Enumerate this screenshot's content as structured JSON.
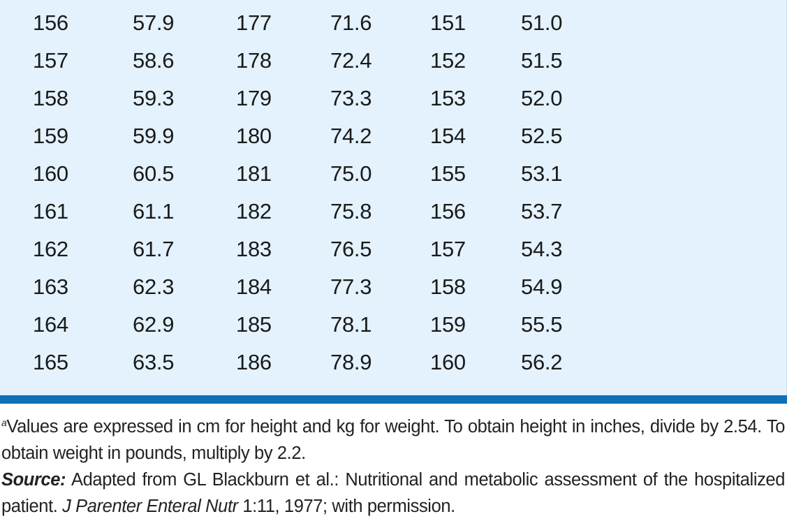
{
  "table": {
    "rows": [
      [
        "156",
        "57.9",
        "177",
        "71.6",
        "151",
        "51.0"
      ],
      [
        "157",
        "58.6",
        "178",
        "72.4",
        "152",
        "51.5"
      ],
      [
        "158",
        "59.3",
        "179",
        "73.3",
        "153",
        "52.0"
      ],
      [
        "159",
        "59.9",
        "180",
        "74.2",
        "154",
        "52.5"
      ],
      [
        "160",
        "60.5",
        "181",
        "75.0",
        "155",
        "53.1"
      ],
      [
        "161",
        "61.1",
        "182",
        "75.8",
        "156",
        "53.7"
      ],
      [
        "162",
        "61.7",
        "183",
        "76.5",
        "157",
        "54.3"
      ],
      [
        "163",
        "62.3",
        "184",
        "77.3",
        "158",
        "54.9"
      ],
      [
        "164",
        "62.9",
        "185",
        "78.1",
        "159",
        "55.5"
      ],
      [
        "165",
        "63.5",
        "186",
        "78.9",
        "160",
        "56.2"
      ]
    ]
  },
  "footnote": {
    "marker": "a",
    "text": "Values are expressed in cm for height and kg for weight. To obtain height in inches, divide by 2.54. To obtain weight in pounds, multiply by 2.2."
  },
  "source": {
    "label": "Source:",
    "text_before": " Adapted from GL Blackburn et al.: Nutritional and metabolic assessment of the hospitalized patient. ",
    "journal": "J Parenter Enteral Nutr",
    "text_after": " 1:11, 1977; with permission."
  },
  "colors": {
    "table_background": "#e3f2fc",
    "rule": "#0f6fb7",
    "text": "#1a1a1a"
  }
}
